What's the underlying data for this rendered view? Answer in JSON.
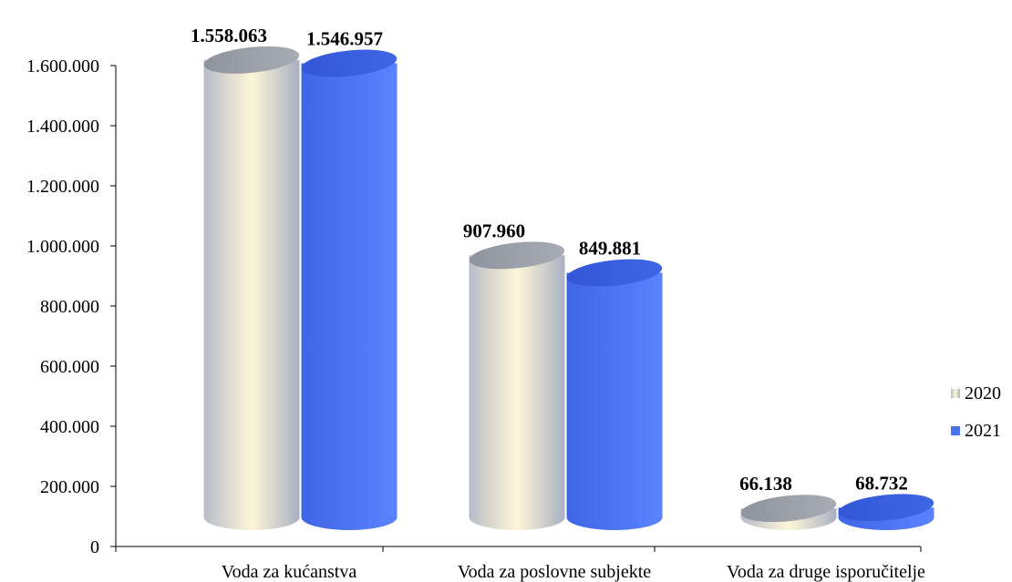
{
  "chart_data": {
    "type": "bar",
    "categories": [
      "Voda za kućanstva",
      "Voda za poslovne subjekte",
      "Voda za druge isporučitelje"
    ],
    "series": [
      {
        "name": "2020",
        "values": [
          1558063,
          907960,
          66138
        ],
        "labels": [
          "1.558.063",
          "907.960",
          "66.138"
        ],
        "color": "#c9cdd6"
      },
      {
        "name": "2021",
        "values": [
          1546957,
          849881,
          68732
        ],
        "labels": [
          "1.546.957",
          "849.881",
          "68.732"
        ],
        "color": "#4a72ee"
      }
    ],
    "ylim": [
      0,
      1600000
    ],
    "yticks": [
      0,
      200000,
      400000,
      600000,
      800000,
      1000000,
      1200000,
      1400000,
      1600000
    ],
    "ytick_labels": [
      "0",
      "200.000",
      "400.000",
      "600.000",
      "800.000",
      "1.000.000",
      "1.200.000",
      "1.400.000",
      "1.600.000"
    ],
    "title": "",
    "xlabel": "",
    "ylabel": "",
    "legend_position": "right",
    "grid": false,
    "style": "3d-cylinder"
  }
}
